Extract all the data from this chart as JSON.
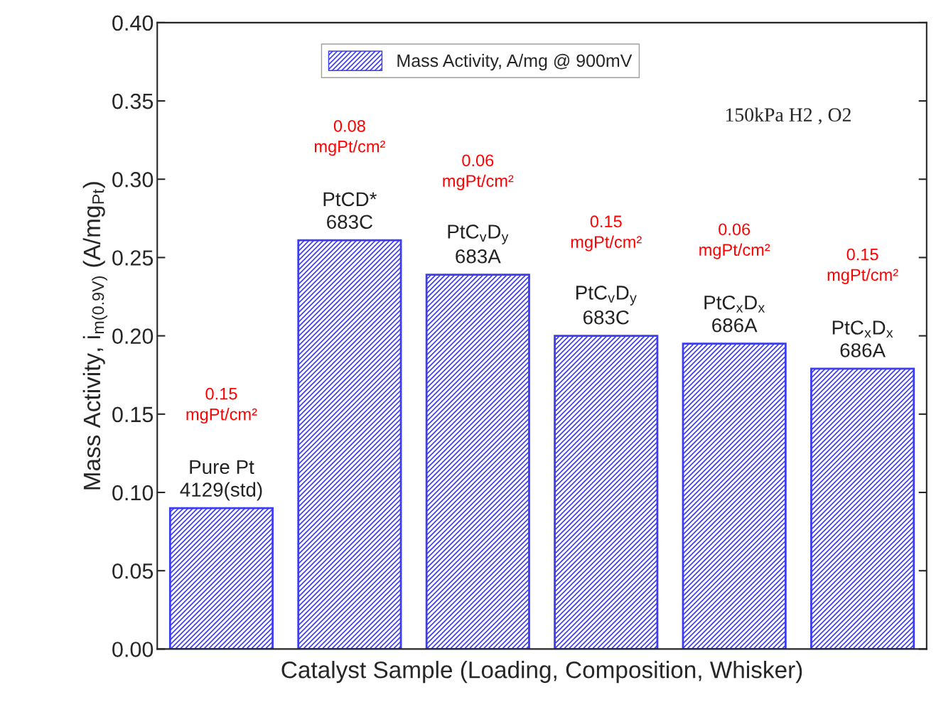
{
  "chart_data": {
    "type": "bar",
    "xlabel": "Catalyst Sample (Loading, Composition, Whisker)",
    "ylabel": "Mass Activity, i$_{m(0.9V)}$ (A/mg$_{Pt}$)",
    "categories": [
      "Pure Pt\n4129(std)",
      "PtCD*\n683C",
      "PtC$_{v}$D$_{y}$\n683A",
      "PtC$_{v}$D$_{y}$\n683C",
      "PtC$_{x}$D$_{x}$\n686A",
      "PtC$_{x}$D$_{x}$\n686A"
    ],
    "series": [
      {
        "name": "Mass Activity, A/mg @ 900mV",
        "color": "#3c3cf0",
        "values": [
          0.09,
          0.261,
          0.239,
          0.2,
          0.195,
          0.179
        ]
      }
    ],
    "annotations": [
      "0.15\nmgPt/cm²",
      "0.08\nmgPt/cm²",
      "0.06\nmgPt/cm²",
      "0.15\nmgPt/cm²",
      "0.06\nmgPt/cm²",
      "0.15\nmgPt/cm²",
      "150kPa H2 , O2"
    ],
    "ylim": [
      0,
      0.4
    ],
    "yticks": [
      {
        "value": 0,
        "label": "0.00"
      },
      0.05,
      {
        "value": 0.1,
        "label": "0.10"
      },
      0.15,
      {
        "value": 0.2,
        "label": "0.20"
      },
      0.25,
      {
        "value": 0.3,
        "label": "0.30"
      },
      0.35,
      {
        "value": 0.4,
        "label": "0.40"
      }
    ],
    "legend": "top",
    "grid": false
  }
}
